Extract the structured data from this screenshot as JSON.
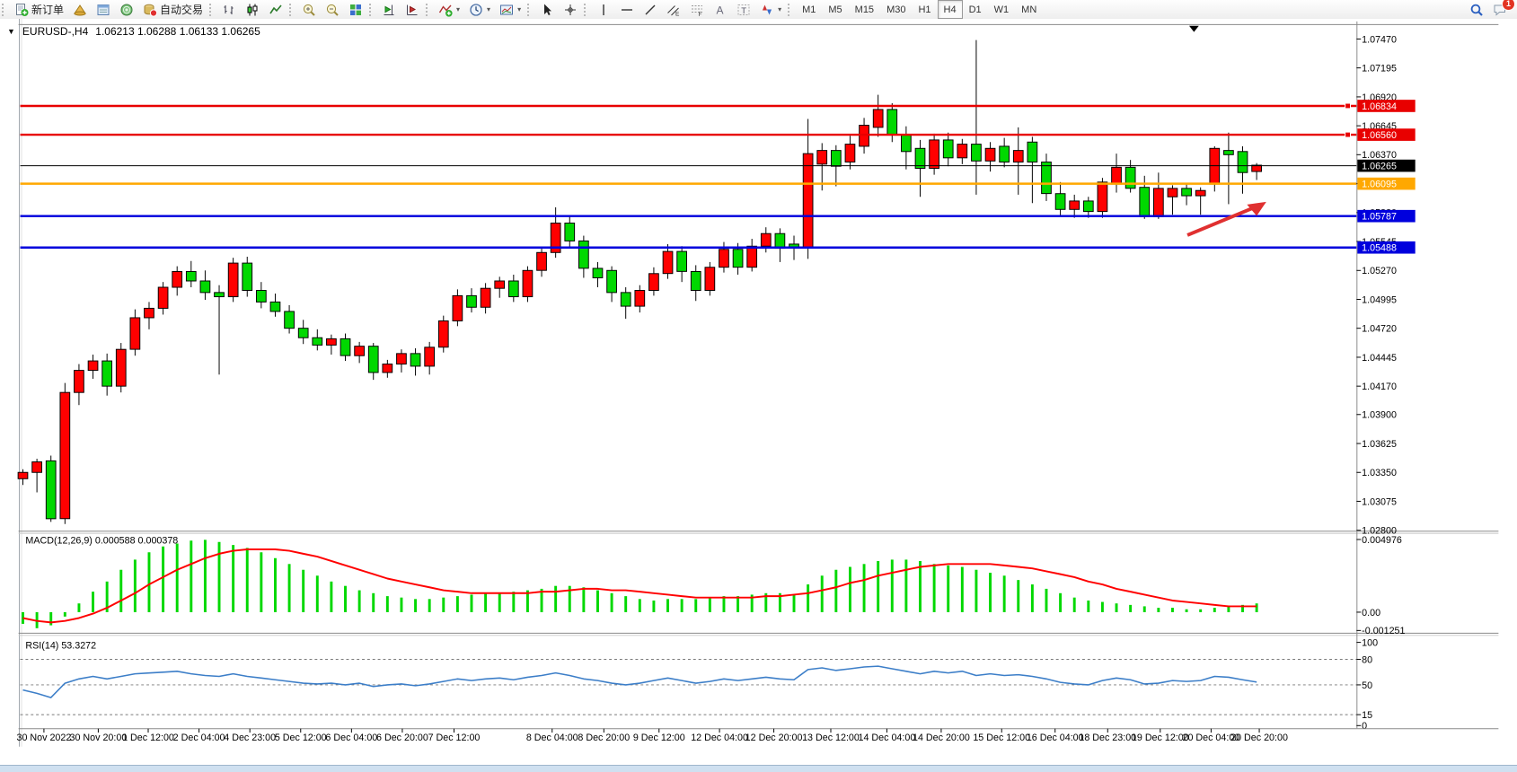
{
  "toolbar": {
    "groups": [
      {
        "items": [
          {
            "name": "new-order-button",
            "icon": "new-order-icon",
            "label": "新订单"
          },
          {
            "name": "market-watch-button",
            "icon": "market-watch-icon"
          },
          {
            "name": "data-window-button",
            "icon": "data-window-icon"
          },
          {
            "name": "navigator-button",
            "icon": "navigator-icon"
          },
          {
            "name": "autotrading-button",
            "icon": "autotrading-icon",
            "label": "自动交易"
          }
        ]
      },
      {
        "items": [
          {
            "name": "bar-chart-button",
            "icon": "bar-chart-icon"
          },
          {
            "name": "candle-chart-button",
            "icon": "candle-chart-icon"
          },
          {
            "name": "line-chart-button",
            "icon": "line-chart-icon"
          }
        ]
      },
      {
        "items": [
          {
            "name": "zoom-in-button",
            "icon": "zoom-in-icon"
          },
          {
            "name": "zoom-out-button",
            "icon": "zoom-out-icon"
          },
          {
            "name": "tile-windows-button",
            "icon": "tile-windows-icon"
          }
        ]
      },
      {
        "items": [
          {
            "name": "chart-shift-end-button",
            "icon": "chart-shift-end-icon"
          },
          {
            "name": "chart-shift-button",
            "icon": "chart-shift-icon"
          }
        ]
      },
      {
        "items": [
          {
            "name": "indicators-button",
            "icon": "indicators-icon",
            "caret": true
          },
          {
            "name": "periods-button",
            "icon": "periods-icon",
            "caret": true
          },
          {
            "name": "templates-button",
            "icon": "templates-icon",
            "caret": true
          }
        ]
      },
      {
        "items": [
          {
            "name": "cursor-button",
            "icon": "cursor-icon"
          },
          {
            "name": "crosshair-button",
            "icon": "crosshair-icon"
          }
        ]
      },
      {
        "items": [
          {
            "name": "vertical-line-button",
            "icon": "vline-icon"
          },
          {
            "name": "horizontal-line-button",
            "icon": "hline-icon"
          },
          {
            "name": "trendline-button",
            "icon": "trendline-icon"
          },
          {
            "name": "equidistant-channel-button",
            "icon": "channel-icon"
          },
          {
            "name": "fibonacci-button",
            "icon": "fibonacci-icon"
          },
          {
            "name": "text-button",
            "icon": "text-icon"
          },
          {
            "name": "label-button",
            "icon": "label-icon"
          },
          {
            "name": "arrows-button",
            "icon": "arrows-icon",
            "caret": true
          }
        ]
      }
    ],
    "timeframes": [
      "M1",
      "M5",
      "M15",
      "M30",
      "H1",
      "H4",
      "D1",
      "W1",
      "MN"
    ],
    "active_timeframe": "H4",
    "notification_count": "1"
  },
  "chart": {
    "symbol": "EURUSD-,H4",
    "ohlc_text": "1.06213 1.06288 1.06133 1.06265"
  },
  "chart_data": {
    "type": "candlestick",
    "symbol": "EURUSD",
    "timeframe": "H4",
    "up_color": "#ff0000",
    "down_color": "#00d800",
    "bars": [
      [
        1.0329,
        1.0338,
        1.0323,
        1.0335
      ],
      [
        1.0335,
        1.0348,
        1.0316,
        1.0345
      ],
      [
        1.0346,
        1.0351,
        1.0288,
        1.0291
      ],
      [
        1.0291,
        1.042,
        1.0286,
        1.0411
      ],
      [
        1.0411,
        1.0438,
        1.0399,
        1.0432
      ],
      [
        1.0432,
        1.0447,
        1.0424,
        1.0441
      ],
      [
        1.0441,
        1.0448,
        1.0408,
        1.0417
      ],
      [
        1.0417,
        1.0458,
        1.0411,
        1.0452
      ],
      [
        1.0452,
        1.049,
        1.0446,
        1.0482
      ],
      [
        1.0482,
        1.0497,
        1.0471,
        1.0491
      ],
      [
        1.0491,
        1.0516,
        1.0485,
        1.0511
      ],
      [
        1.0511,
        1.0531,
        1.0503,
        1.0526
      ],
      [
        1.0526,
        1.0536,
        1.0511,
        1.0517
      ],
      [
        1.0517,
        1.0527,
        1.0499,
        1.0506
      ],
      [
        1.0506,
        1.0513,
        1.0428,
        1.0502
      ],
      [
        1.0502,
        1.0539,
        1.0497,
        1.0534
      ],
      [
        1.0534,
        1.054,
        1.0502,
        1.0508
      ],
      [
        1.0508,
        1.0516,
        1.0491,
        1.0497
      ],
      [
        1.0497,
        1.0505,
        1.0483,
        1.0488
      ],
      [
        1.0488,
        1.0494,
        1.0467,
        1.0472
      ],
      [
        1.0472,
        1.048,
        1.0457,
        1.0463
      ],
      [
        1.0463,
        1.0471,
        1.0451,
        1.0456
      ],
      [
        1.0456,
        1.0466,
        1.0447,
        1.0462
      ],
      [
        1.0462,
        1.0467,
        1.0441,
        1.0446
      ],
      [
        1.0446,
        1.0459,
        1.0439,
        1.0455
      ],
      [
        1.0455,
        1.0458,
        1.0423,
        1.043
      ],
      [
        1.043,
        1.0442,
        1.0425,
        1.0438
      ],
      [
        1.0438,
        1.0452,
        1.043,
        1.0448
      ],
      [
        1.0448,
        1.0453,
        1.0427,
        1.0436
      ],
      [
        1.0436,
        1.0459,
        1.0428,
        1.0454
      ],
      [
        1.0454,
        1.0484,
        1.0449,
        1.0479
      ],
      [
        1.0479,
        1.0509,
        1.0474,
        1.0503
      ],
      [
        1.0503,
        1.051,
        1.0487,
        1.0492
      ],
      [
        1.0492,
        1.0515,
        1.0486,
        1.051
      ],
      [
        1.051,
        1.0521,
        1.0501,
        1.0517
      ],
      [
        1.0517,
        1.0523,
        1.0497,
        1.0502
      ],
      [
        1.0502,
        1.0531,
        1.0497,
        1.0527
      ],
      [
        1.0527,
        1.0549,
        1.0521,
        1.0544
      ],
      [
        1.0544,
        1.0587,
        1.0539,
        1.0572
      ],
      [
        1.0572,
        1.0578,
        1.0549,
        1.0555
      ],
      [
        1.0555,
        1.056,
        1.052,
        1.0529
      ],
      [
        1.0529,
        1.0535,
        1.0511,
        1.052
      ],
      [
        1.0527,
        1.0531,
        1.0497,
        1.0506
      ],
      [
        1.0506,
        1.0511,
        1.0481,
        1.0493
      ],
      [
        1.0493,
        1.0513,
        1.0487,
        1.0508
      ],
      [
        1.0508,
        1.053,
        1.0503,
        1.0524
      ],
      [
        1.0524,
        1.0552,
        1.0519,
        1.0545
      ],
      [
        1.0545,
        1.055,
        1.0516,
        1.0526
      ],
      [
        1.0526,
        1.0532,
        1.0498,
        1.0508
      ],
      [
        1.0508,
        1.0535,
        1.0503,
        1.053
      ],
      [
        1.053,
        1.0554,
        1.0525,
        1.0547
      ],
      [
        1.0547,
        1.0553,
        1.0523,
        1.053
      ],
      [
        1.053,
        1.0557,
        1.0526,
        1.055
      ],
      [
        1.055,
        1.0568,
        1.0544,
        1.0562
      ],
      [
        1.0562,
        1.0567,
        1.0535,
        1.0548
      ],
      [
        1.0552,
        1.056,
        1.0537,
        1.0549
      ],
      [
        1.0549,
        1.0671,
        1.0538,
        1.0638
      ],
      [
        1.0628,
        1.0648,
        1.0603,
        1.0641
      ],
      [
        1.0641,
        1.0646,
        1.0607,
        1.0626
      ],
      [
        1.063,
        1.0655,
        1.0623,
        1.0647
      ],
      [
        1.0645,
        1.0672,
        1.0638,
        1.0665
      ],
      [
        1.0663,
        1.0694,
        1.0654,
        1.068
      ],
      [
        1.068,
        1.0686,
        1.0649,
        1.0656
      ],
      [
        1.0656,
        1.0664,
        1.0623,
        1.064
      ],
      [
        1.0643,
        1.0651,
        1.0597,
        1.0624
      ],
      [
        1.0624,
        1.0657,
        1.0618,
        1.0651
      ],
      [
        1.0651,
        1.0658,
        1.0626,
        1.0634
      ],
      [
        1.0634,
        1.0652,
        1.0628,
        1.0647
      ],
      [
        1.0647,
        1.0746,
        1.0599,
        1.0631
      ],
      [
        1.0631,
        1.0649,
        1.0621,
        1.0643
      ],
      [
        1.0645,
        1.0653,
        1.0625,
        1.063
      ],
      [
        1.063,
        1.0663,
        1.0599,
        1.0641
      ],
      [
        1.0649,
        1.0654,
        1.0591,
        1.063
      ],
      [
        1.063,
        1.0638,
        1.0593,
        1.06
      ],
      [
        1.06,
        1.0611,
        1.0579,
        1.0585
      ],
      [
        1.0585,
        1.0599,
        1.0577,
        1.0593
      ],
      [
        1.0593,
        1.0597,
        1.0577,
        1.0583
      ],
      [
        1.0583,
        1.0615,
        1.0577,
        1.0611
      ],
      [
        1.0609,
        1.0638,
        1.0601,
        1.0625
      ],
      [
        1.0625,
        1.0632,
        1.0601,
        1.0605
      ],
      [
        1.0606,
        1.0617,
        1.0576,
        1.0578
      ],
      [
        1.0578,
        1.062,
        1.0576,
        1.0605
      ],
      [
        1.0597,
        1.0608,
        1.058,
        1.0605
      ],
      [
        1.0605,
        1.0609,
        1.0589,
        1.0598
      ],
      [
        1.0598,
        1.0606,
        1.058,
        1.0603
      ],
      [
        1.0609,
        1.0645,
        1.0602,
        1.0643
      ],
      [
        1.0641,
        1.0658,
        1.059,
        1.0637
      ],
      [
        1.064,
        1.0645,
        1.06,
        1.062
      ],
      [
        1.0621,
        1.0629,
        1.0613,
        1.0627
      ]
    ],
    "price_ticks": [
      "1.07470",
      "1.07195",
      "1.06920",
      "1.06645",
      "1.06370",
      "1.06095",
      "1.05820",
      "1.05545",
      "1.05270",
      "1.04995",
      "1.04720",
      "1.04445",
      "1.04170",
      "1.03900",
      "1.03625",
      "1.03350",
      "1.03075",
      "1.02800"
    ],
    "hlines": [
      {
        "price": 1.06834,
        "label": "1.06834",
        "color": "#e80000",
        "handle": true
      },
      {
        "price": 1.0656,
        "label": "1.06560",
        "color": "#e80000",
        "handle": true
      },
      {
        "price": 1.06265,
        "label": "1.06265",
        "color": "#000000",
        "current": true
      },
      {
        "price": 1.06095,
        "label": "1.06095",
        "color": "#ffa800"
      },
      {
        "price": 1.05787,
        "label": "1.05787",
        "color": "#0000dd"
      },
      {
        "price": 1.05488,
        "label": "1.05488",
        "color": "#0000dd"
      }
    ],
    "time_labels": [
      {
        "text": "30 Nov 2022",
        "x": 29
      },
      {
        "text": "30 Nov 20:00",
        "x": 91
      },
      {
        "text": "1 Dec 12:00",
        "x": 148
      },
      {
        "text": "2 Dec 04:00",
        "x": 206
      },
      {
        "text": "4 Dec 23:00",
        "x": 264
      },
      {
        "text": "5 Dec 12:00",
        "x": 322
      },
      {
        "text": "6 Dec 04:00",
        "x": 380
      },
      {
        "text": "6 Dec 20:00",
        "x": 438
      },
      {
        "text": "7 Dec 12:00",
        "x": 497
      },
      {
        "text": "8 Dec 04:00",
        "x": 609
      },
      {
        "text": "8 Dec 20:00",
        "x": 668
      },
      {
        "text": "9 Dec 12:00",
        "x": 731
      },
      {
        "text": "12 Dec 04:00",
        "x": 800
      },
      {
        "text": "12 Dec 20:00",
        "x": 862
      },
      {
        "text": "13 Dec 12:00",
        "x": 927
      },
      {
        "text": "14 Dec 04:00",
        "x": 991
      },
      {
        "text": "14 Dec 20:00",
        "x": 1053
      },
      {
        "text": "15 Dec 12:00",
        "x": 1122
      },
      {
        "text": "16 Dec 04:00",
        "x": 1183
      },
      {
        "text": "18 Dec 23:00",
        "x": 1243
      },
      {
        "text": "19 Dec 12:00",
        "x": 1303
      },
      {
        "text": "20 Dec 04:00",
        "x": 1361
      },
      {
        "text": "20 Dec 20:00",
        "x": 1416
      }
    ],
    "indicators": {
      "macd": {
        "label": "MACD(12,26,9)",
        "values_text": "0.000588 0.000378",
        "axis": [
          "0.004976",
          "0.00",
          "-0.001251"
        ],
        "histogram_color": "#00d800",
        "signal_color": "#ff0000",
        "histogram": [
          -0.0008,
          -0.0011,
          -0.0009,
          -0.0003,
          0.0006,
          0.0014,
          0.0021,
          0.0029,
          0.0036,
          0.0041,
          0.0045,
          0.0047,
          0.0049,
          0.00495,
          0.0048,
          0.0046,
          0.0044,
          0.0041,
          0.0037,
          0.0033,
          0.0029,
          0.0025,
          0.0021,
          0.0018,
          0.0015,
          0.0013,
          0.0011,
          0.001,
          0.0009,
          0.0009,
          0.001,
          0.0011,
          0.0012,
          0.0013,
          0.0013,
          0.0014,
          0.0015,
          0.0016,
          0.0018,
          0.0018,
          0.0017,
          0.0015,
          0.0013,
          0.0011,
          0.0009,
          0.0008,
          0.0009,
          0.0009,
          0.0009,
          0.001,
          0.0011,
          0.0011,
          0.0012,
          0.0013,
          0.0013,
          0.0012,
          0.0019,
          0.0025,
          0.0029,
          0.0031,
          0.0033,
          0.0035,
          0.0036,
          0.0036,
          0.0035,
          0.0033,
          0.0032,
          0.0031,
          0.0029,
          0.0027,
          0.0025,
          0.0022,
          0.0019,
          0.0016,
          0.0013,
          0.001,
          0.0008,
          0.0007,
          0.0006,
          0.0005,
          0.0004,
          0.0003,
          0.0003,
          0.0002,
          0.0002,
          0.0003,
          0.0004,
          0.0005,
          0.0006
        ],
        "signal": [
          -0.0004,
          -0.0006,
          -0.0007,
          -0.0006,
          -0.0004,
          -0.0001,
          0.0003,
          0.0008,
          0.0013,
          0.0019,
          0.0024,
          0.0029,
          0.0033,
          0.0037,
          0.004,
          0.0042,
          0.0043,
          0.0043,
          0.0043,
          0.0042,
          0.004,
          0.0038,
          0.0035,
          0.0032,
          0.0029,
          0.0026,
          0.0023,
          0.0021,
          0.0019,
          0.0017,
          0.0015,
          0.0014,
          0.0013,
          0.0013,
          0.0013,
          0.0013,
          0.0013,
          0.0014,
          0.0014,
          0.0015,
          0.0016,
          0.0016,
          0.0015,
          0.0015,
          0.0014,
          0.0013,
          0.0012,
          0.0011,
          0.001,
          0.001,
          0.001,
          0.001,
          0.001,
          0.0011,
          0.0011,
          0.0012,
          0.0013,
          0.0015,
          0.0017,
          0.002,
          0.0022,
          0.0025,
          0.0027,
          0.0029,
          0.0031,
          0.0032,
          0.0033,
          0.0033,
          0.0033,
          0.0033,
          0.0032,
          0.0031,
          0.003,
          0.0028,
          0.0026,
          0.0024,
          0.0021,
          0.0019,
          0.0016,
          0.0014,
          0.0012,
          0.001,
          0.0008,
          0.0007,
          0.0006,
          0.0005,
          0.0004,
          0.0004,
          0.0004
        ]
      },
      "rsi": {
        "label": "RSI(14)",
        "value_text": "53.3272",
        "axis": [
          "100",
          "80",
          "50",
          "15",
          "0"
        ],
        "levels": [
          80,
          50,
          15
        ],
        "line_color": "#3c7ec8",
        "series": [
          44,
          40,
          35,
          52,
          57,
          60,
          57,
          60,
          63,
          64,
          65,
          66,
          63,
          61,
          60,
          63,
          60,
          58,
          56,
          54,
          52,
          51,
          52,
          50,
          52,
          48,
          50,
          51,
          49,
          51,
          54,
          57,
          55,
          57,
          58,
          56,
          59,
          61,
          64,
          61,
          57,
          55,
          52,
          50,
          52,
          55,
          58,
          55,
          52,
          54,
          57,
          55,
          57,
          59,
          57,
          56,
          68,
          70,
          67,
          69,
          71,
          72,
          69,
          66,
          63,
          66,
          64,
          66,
          61,
          63,
          61,
          62,
          60,
          57,
          53,
          51,
          50,
          55,
          58,
          56,
          51,
          52,
          55,
          54,
          55,
          60,
          59,
          56,
          53.3
        ]
      }
    },
    "annotation_arrow": {
      "color": "#e03030",
      "from": [
        1334,
        268
      ],
      "to": [
        1424,
        230
      ]
    }
  }
}
